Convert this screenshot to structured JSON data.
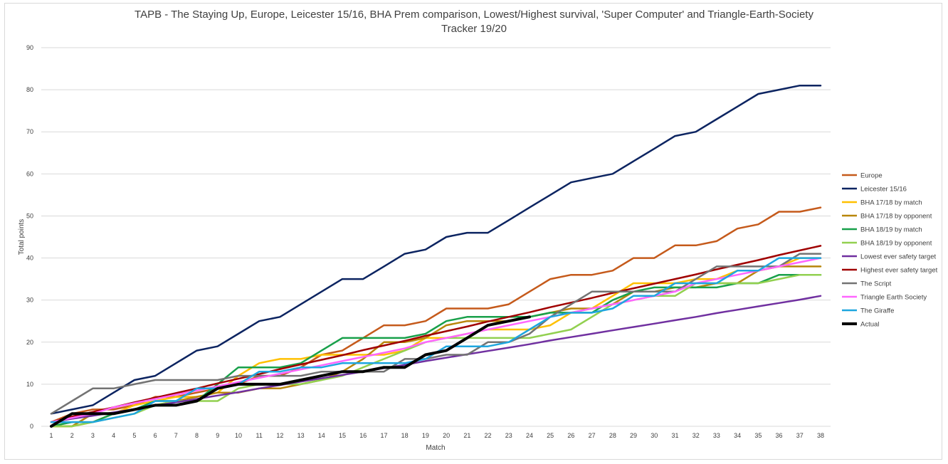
{
  "chart_data": {
    "type": "line",
    "title_line1": "TAPB - The Staying Up, Europe, Leicester 15/16, BHA Prem comparison, Lowest/Highest survival, 'Super Computer' and Triangle-Earth-Society",
    "title_line2": "Tracker 19/20",
    "xlabel": "Match",
    "ylabel": "Total points",
    "xlim": [
      1,
      38
    ],
    "ylim": [
      0,
      90
    ],
    "y_ticks": [
      0,
      10,
      20,
      30,
      40,
      50,
      60,
      70,
      80,
      90
    ],
    "x_ticks": [
      1,
      2,
      3,
      4,
      5,
      6,
      7,
      8,
      9,
      10,
      11,
      12,
      13,
      14,
      15,
      16,
      17,
      18,
      19,
      20,
      21,
      22,
      23,
      24,
      25,
      26,
      27,
      28,
      29,
      30,
      31,
      32,
      33,
      34,
      35,
      36,
      37,
      38
    ],
    "grid": "horizontal",
    "legend_position": "right",
    "series": [
      {
        "name": "Europe",
        "color": "#c55a1b",
        "width": 2.5,
        "x_start": 1,
        "values": [
          1,
          3,
          4,
          4,
          5,
          7,
          7,
          8,
          9,
          10,
          12,
          12,
          14,
          17,
          18,
          21,
          24,
          24,
          25,
          28,
          28,
          28,
          29,
          32,
          35,
          36,
          36,
          37,
          40,
          40,
          43,
          43,
          44,
          47,
          48,
          51,
          51,
          52
        ]
      },
      {
        "name": "Leicester 15/16",
        "color": "#0c2461",
        "width": 2.5,
        "x_start": 1,
        "values": [
          3,
          4,
          5,
          8,
          11,
          12,
          15,
          18,
          19,
          22,
          25,
          26,
          29,
          32,
          35,
          35,
          38,
          41,
          42,
          45,
          46,
          46,
          49,
          52,
          55,
          58,
          59,
          60,
          63,
          66,
          69,
          70,
          73,
          76,
          79,
          80,
          81,
          81
        ]
      },
      {
        "name": "BHA 17/18 by match",
        "color": "#ffc000",
        "width": 2.5,
        "x_start": 1,
        "values": [
          0,
          0,
          1,
          3,
          5,
          6,
          7,
          7,
          8,
          12,
          15,
          16,
          16,
          17,
          17,
          17,
          17,
          18,
          21,
          21,
          22,
          23,
          23,
          23,
          24,
          27,
          28,
          31,
          34,
          34,
          34,
          35,
          35,
          37,
          37,
          38,
          40,
          40
        ]
      },
      {
        "name": "BHA 17/18 by opponent",
        "color": "#b8860b",
        "width": 2.5,
        "x_start": 1,
        "values": [
          0,
          0,
          3,
          3,
          4,
          5,
          6,
          7,
          8,
          8,
          9,
          9,
          10,
          11,
          13,
          16,
          20,
          20,
          21,
          24,
          25,
          25,
          25,
          26,
          27,
          28,
          28,
          29,
          32,
          32,
          33,
          33,
          34,
          34,
          37,
          38,
          38,
          38
        ]
      },
      {
        "name": "BHA 18/19 by match",
        "color": "#18a04a",
        "width": 2.5,
        "x_start": 1,
        "values": [
          0,
          1,
          1,
          3,
          4,
          6,
          6,
          6,
          10,
          14,
          14,
          14,
          15,
          18,
          21,
          21,
          21,
          21,
          22,
          25,
          26,
          26,
          26,
          26,
          27,
          27,
          27,
          30,
          32,
          33,
          33,
          33,
          33,
          34,
          34,
          36,
          36,
          36
        ]
      },
      {
        "name": "BHA 18/19 by opponent",
        "color": "#92d050",
        "width": 2.5,
        "x_start": 1,
        "values": [
          0,
          0,
          1,
          2,
          3,
          5,
          6,
          6,
          6,
          9,
          10,
          10,
          10,
          11,
          12,
          14,
          16,
          18,
          20,
          21,
          21,
          21,
          21,
          21,
          22,
          23,
          26,
          29,
          30,
          31,
          31,
          34,
          34,
          34,
          34,
          35,
          36,
          36
        ]
      },
      {
        "name": "Lowest ever safety target",
        "color": "#7030a0",
        "width": 2.5,
        "x_start": 1,
        "values": [
          1,
          1.8,
          2.5,
          3.3,
          4.1,
          4.9,
          5.7,
          6.5,
          7.3,
          8.1,
          9,
          9.8,
          10.6,
          11.4,
          12.2,
          13,
          13.8,
          14.6,
          15.5,
          16.3,
          17.1,
          17.9,
          18.7,
          19.5,
          20.4,
          21.2,
          22,
          22.8,
          23.6,
          24.4,
          25.2,
          26,
          26.9,
          27.7,
          28.5,
          29.3,
          30.1,
          31
        ]
      },
      {
        "name": "Highest ever safety target",
        "color": "#a00000",
        "width": 2.5,
        "x_start": 1,
        "values": [
          1,
          2.3,
          3.4,
          4.5,
          5.7,
          6.8,
          7.9,
          9,
          10.2,
          11.3,
          12.4,
          13.6,
          14.7,
          15.8,
          16.9,
          18.1,
          19.2,
          20.3,
          21.5,
          22.6,
          23.7,
          24.9,
          26,
          27.1,
          28.3,
          29.4,
          30.5,
          31.7,
          32.8,
          33.9,
          35,
          36.1,
          37.3,
          38.4,
          39.5,
          40.7,
          41.8,
          42.9
        ]
      },
      {
        "name": "The Script",
        "color": "#737373",
        "width": 2.5,
        "x_start": 1,
        "values": [
          3,
          6,
          9,
          9,
          10,
          11,
          11,
          11,
          11,
          12,
          12,
          12,
          12,
          13,
          13,
          13,
          13,
          16,
          16,
          17,
          17,
          20,
          20,
          22,
          26,
          29,
          32,
          32,
          32,
          32,
          32,
          35,
          38,
          38,
          38,
          38,
          41,
          41
        ]
      },
      {
        "name": "Triangle Earth Society",
        "color": "#ff66ff",
        "width": 2.5,
        "x_start": 1,
        "values": [
          1,
          2,
          3,
          4.5,
          5.5,
          6.5,
          7.5,
          8.5,
          9.5,
          10.5,
          11.5,
          12.5,
          13.5,
          14.5,
          15.5,
          16.5,
          17.5,
          18.5,
          20,
          21,
          22,
          23,
          24,
          25,
          26,
          27,
          28,
          29,
          30,
          31,
          32,
          34,
          35,
          36,
          37,
          38,
          39,
          40
        ]
      },
      {
        "name": "The Giraffe",
        "color": "#1ea6df",
        "width": 2.5,
        "x_start": 1,
        "values": [
          1,
          1,
          1,
          2,
          3,
          6,
          6,
          9,
          9,
          10,
          13,
          13,
          14,
          14,
          15,
          15,
          15,
          15,
          16,
          19,
          19,
          19,
          20,
          23,
          26,
          27,
          27,
          28,
          31,
          31,
          34,
          34,
          34,
          37,
          37,
          40,
          40,
          40
        ]
      },
      {
        "name": "Actual",
        "color": "#000000",
        "width": 4,
        "x_start": 1,
        "values": [
          0,
          3,
          3,
          3,
          4,
          5,
          5,
          6,
          9,
          10,
          10,
          10,
          11,
          12,
          13,
          13,
          14,
          14,
          17,
          18,
          21,
          24,
          25,
          26
        ]
      }
    ]
  }
}
